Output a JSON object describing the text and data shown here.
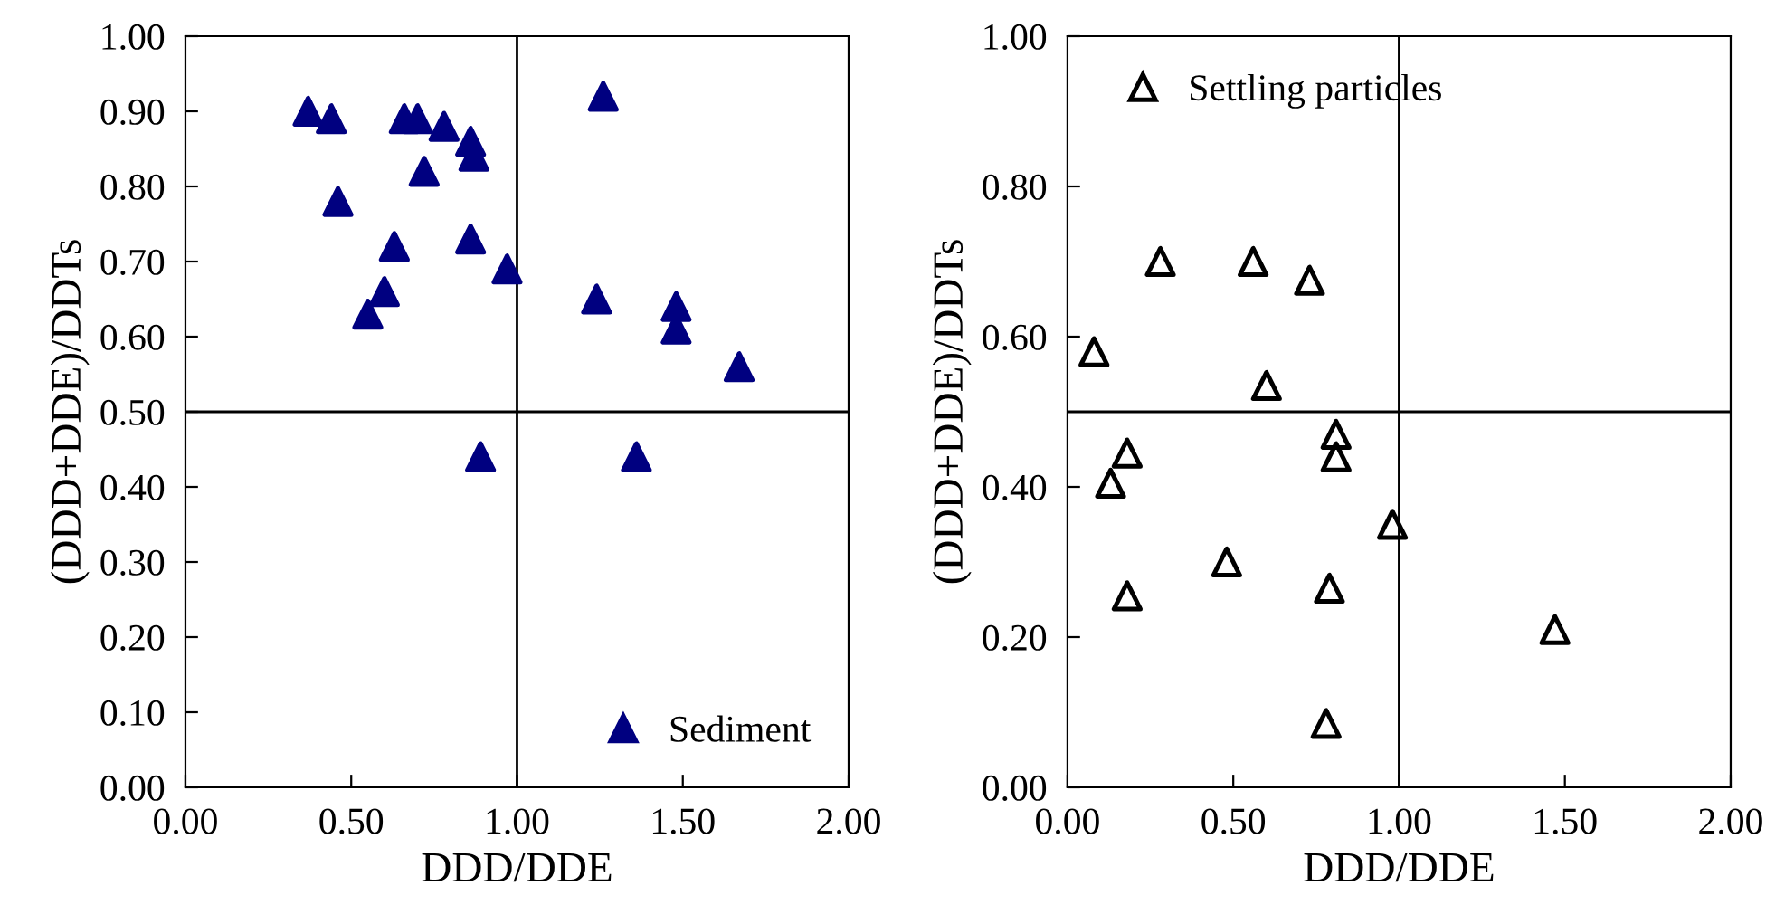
{
  "chart_data": [
    {
      "type": "scatter",
      "xlabel": "DDD/DDE",
      "ylabel": "(DDD+DDE)/DDTs",
      "xlim": [
        0,
        2
      ],
      "ylim": [
        0,
        1
      ],
      "xticks": [
        {
          "value": 0,
          "label": "0.00"
        },
        {
          "value": 0.5,
          "label": "0.50"
        },
        {
          "value": 1,
          "label": "1.00"
        },
        {
          "value": 1.5,
          "label": "1.50"
        },
        {
          "value": 2,
          "label": "2.00"
        }
      ],
      "yticks": [
        {
          "value": 0,
          "label": "0.00"
        },
        {
          "value": 0.1,
          "label": "0.10"
        },
        {
          "value": 0.2,
          "label": "0.20"
        },
        {
          "value": 0.3,
          "label": "0.30"
        },
        {
          "value": 0.4,
          "label": "0.40"
        },
        {
          "value": 0.5,
          "label": "0.50"
        },
        {
          "value": 0.6,
          "label": "0.60"
        },
        {
          "value": 0.7,
          "label": "0.70"
        },
        {
          "value": 0.8,
          "label": "0.80"
        },
        {
          "value": 0.9,
          "label": "0.90"
        },
        {
          "value": 1,
          "label": "1.00"
        }
      ],
      "marker": "triangle",
      "legend": "bottom right",
      "grid": false,
      "ref_lines": [
        {
          "axis": "x",
          "value": 1,
          "color": "#000000"
        },
        {
          "axis": "y",
          "value": 0.5,
          "color": "#000000"
        }
      ],
      "series": [
        {
          "name": "Sediment",
          "color": "#000080",
          "x": [
            0.37,
            0.44,
            0.66,
            0.7,
            0.78,
            0.86,
            0.87,
            0.72,
            0.46,
            0.63,
            0.86,
            0.97,
            0.6,
            0.55,
            1.26,
            1.24,
            1.48,
            1.48,
            1.67,
            0.89,
            1.36
          ],
          "values": [
            0.9,
            0.89,
            0.89,
            0.89,
            0.88,
            0.86,
            0.84,
            0.82,
            0.78,
            0.72,
            0.73,
            0.69,
            0.66,
            0.63,
            0.92,
            0.65,
            0.64,
            0.61,
            0.56,
            0.44,
            0.44
          ]
        }
      ]
    },
    {
      "type": "scatter",
      "xlabel": "DDD/DDE",
      "ylabel": "(DDD+DDE)/DDTs",
      "xlim": [
        0,
        2
      ],
      "ylim": [
        0,
        1
      ],
      "xticks": [
        {
          "value": 0,
          "label": "0.00"
        },
        {
          "value": 0.5,
          "label": "0.50"
        },
        {
          "value": 1,
          "label": "1.00"
        },
        {
          "value": 1.5,
          "label": "1.50"
        },
        {
          "value": 2,
          "label": "2.00"
        }
      ],
      "yticks": [
        {
          "value": 0,
          "label": "0.00"
        },
        {
          "value": 0.2,
          "label": "0.20"
        },
        {
          "value": 0.4,
          "label": "0.40"
        },
        {
          "value": 0.6,
          "label": "0.60"
        },
        {
          "value": 0.8,
          "label": "0.80"
        },
        {
          "value": 1,
          "label": "1.00"
        }
      ],
      "marker": "triangle",
      "legend": "top left",
      "grid": false,
      "ref_lines": [
        {
          "axis": "x",
          "value": 1,
          "color": "#000000"
        },
        {
          "axis": "y",
          "value": 0.5,
          "color": "#000000"
        }
      ],
      "series": [
        {
          "name": "Settling particles",
          "color": "#000000",
          "x": [
            0.08,
            0.28,
            0.56,
            0.73,
            0.6,
            0.18,
            0.13,
            0.81,
            0.81,
            0.98,
            0.48,
            0.18,
            0.79,
            1.47,
            0.78
          ],
          "values": [
            0.58,
            0.7,
            0.7,
            0.675,
            0.535,
            0.445,
            0.405,
            0.47,
            0.44,
            0.35,
            0.3,
            0.255,
            0.265,
            0.21,
            0.085
          ]
        }
      ]
    }
  ]
}
